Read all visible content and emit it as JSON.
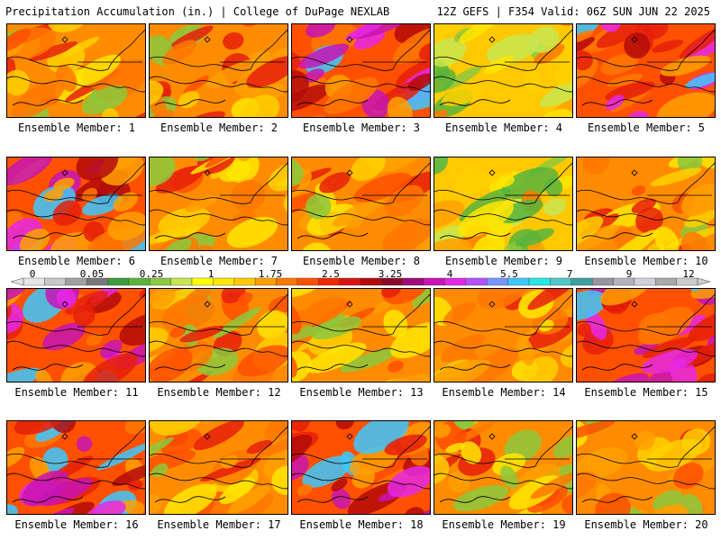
{
  "header": {
    "title": "Precipitation Accumulation (in.) | College of DuPage NEXLAB",
    "run_info": "12Z GEFS | F354 Valid: 06Z SUN JUN 22 2025"
  },
  "members": [
    {
      "label": "Ensemble Member: 1",
      "dominant": "mixed"
    },
    {
      "label": "Ensemble Member: 2",
      "dominant": "mixed"
    },
    {
      "label": "Ensemble Member: 3",
      "dominant": "wet"
    },
    {
      "label": "Ensemble Member: 4",
      "dominant": "dry"
    },
    {
      "label": "Ensemble Member: 5",
      "dominant": "wet"
    },
    {
      "label": "Ensemble Member: 6",
      "dominant": "wet"
    },
    {
      "label": "Ensemble Member: 7",
      "dominant": "mixed"
    },
    {
      "label": "Ensemble Member: 8",
      "dominant": "mixed"
    },
    {
      "label": "Ensemble Member: 9",
      "dominant": "dry"
    },
    {
      "label": "Ensemble Member: 10",
      "dominant": "mixed"
    },
    {
      "label": "Ensemble Member: 11",
      "dominant": "wet"
    },
    {
      "label": "Ensemble Member: 12",
      "dominant": "mixed"
    },
    {
      "label": "Ensemble Member: 13",
      "dominant": "mixed"
    },
    {
      "label": "Ensemble Member: 14",
      "dominant": "mixed"
    },
    {
      "label": "Ensemble Member: 15",
      "dominant": "wet"
    },
    {
      "label": "Ensemble Member: 16",
      "dominant": "wet"
    },
    {
      "label": "Ensemble Member: 17",
      "dominant": "mixed"
    },
    {
      "label": "Ensemble Member: 18",
      "dominant": "wet"
    },
    {
      "label": "Ensemble Member: 19",
      "dominant": "mixed"
    },
    {
      "label": "Ensemble Member: 20",
      "dominant": "mixed"
    }
  ],
  "colorbar": {
    "labels": [
      "0",
      "0.05",
      "0.25",
      "1",
      "1.75",
      "2.5",
      "3.25",
      "4",
      "5.5",
      "7",
      "9",
      "12"
    ],
    "colors": [
      "#e6e6e6",
      "#c8c8c8",
      "#a0a0a0",
      "#787878",
      "#3c9b3c",
      "#58b43c",
      "#8cc83c",
      "#c8e650",
      "#ffff00",
      "#ffe600",
      "#ffc800",
      "#ffa000",
      "#ff7800",
      "#ff5000",
      "#f02800",
      "#dc1414",
      "#b40a0a",
      "#8c0a28",
      "#a00a78",
      "#c814b4",
      "#e628e6",
      "#b450ff",
      "#7896ff",
      "#3cc8ff",
      "#28e6e6",
      "#50c8c8",
      "#3ca0a0",
      "#9696a0",
      "#b4b4be",
      "#d2d2dc",
      "#aaaaaa",
      "#cccccc"
    ]
  }
}
